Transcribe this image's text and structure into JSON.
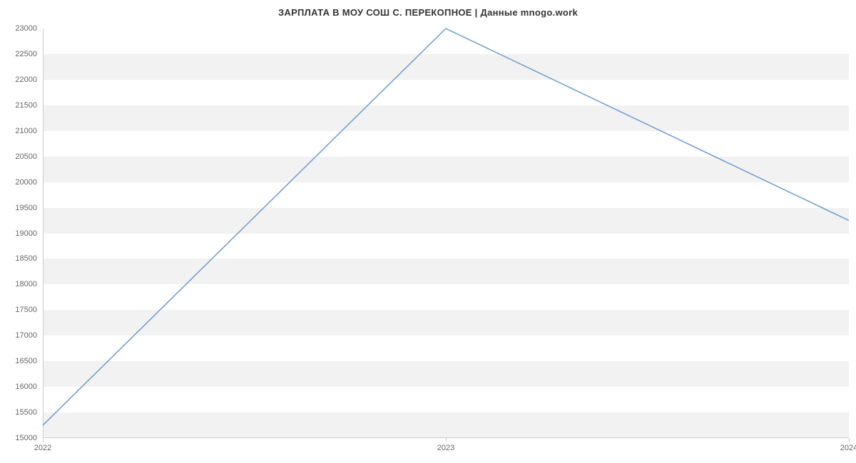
{
  "chart": {
    "type": "line",
    "title": "ЗАРПЛАТА В МОУ СОШ С. ПЕРЕКОПНОЕ | Данные mnogo.work",
    "title_fontsize": 13,
    "title_color": "#333333",
    "background_color": "#ffffff",
    "band_color": "#f2f2f2",
    "axis_line_color": "#cccccc",
    "tick_label_color": "#666666",
    "tick_label_fontsize": 11,
    "line_color": "#6c9bd1",
    "line_width": 1.5,
    "x": {
      "categories": [
        "2022",
        "2023",
        "2024"
      ],
      "positions": [
        0,
        0.5,
        1
      ]
    },
    "y": {
      "min": 15000,
      "max": 23000,
      "tick_step": 500,
      "ticks": [
        15000,
        15500,
        16000,
        16500,
        17000,
        17500,
        18000,
        18500,
        19000,
        19500,
        20000,
        20500,
        21000,
        21500,
        22000,
        22500,
        23000
      ]
    },
    "series": [
      {
        "x": "2022",
        "y": 15250
      },
      {
        "x": "2023",
        "y": 23000
      },
      {
        "x": "2024",
        "y": 19250
      }
    ]
  }
}
